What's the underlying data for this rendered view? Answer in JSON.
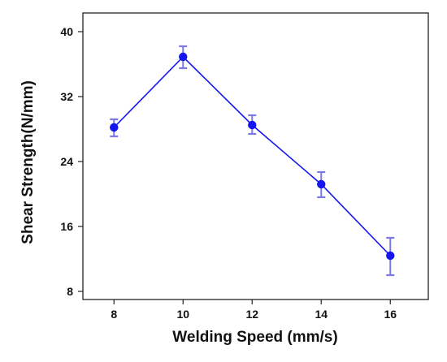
{
  "chart_data": {
    "type": "line",
    "title": "",
    "xlabel": "Welding Speed (mm/s)",
    "ylabel": "Shear Strength(N/mm)",
    "x": [
      8,
      10,
      12,
      14,
      16
    ],
    "x_ticks": [
      "8",
      "10",
      "12",
      "14",
      "16"
    ],
    "xlim": [
      7.1,
      17.1
    ],
    "y_ticks": [
      "8",
      "16",
      "24",
      "32",
      "40"
    ],
    "ylim": [
      7,
      42.3
    ],
    "grid": false,
    "series": [
      {
        "values": [
          28.2,
          36.9,
          28.5,
          21.2,
          12.4
        ],
        "error_low": [
          27.1,
          35.5,
          27.4,
          19.6,
          10.0
        ],
        "error_high": [
          29.2,
          38.2,
          29.7,
          22.7,
          14.6
        ],
        "color": "#1515f0",
        "error_color": "#7a7ae6"
      }
    ]
  }
}
